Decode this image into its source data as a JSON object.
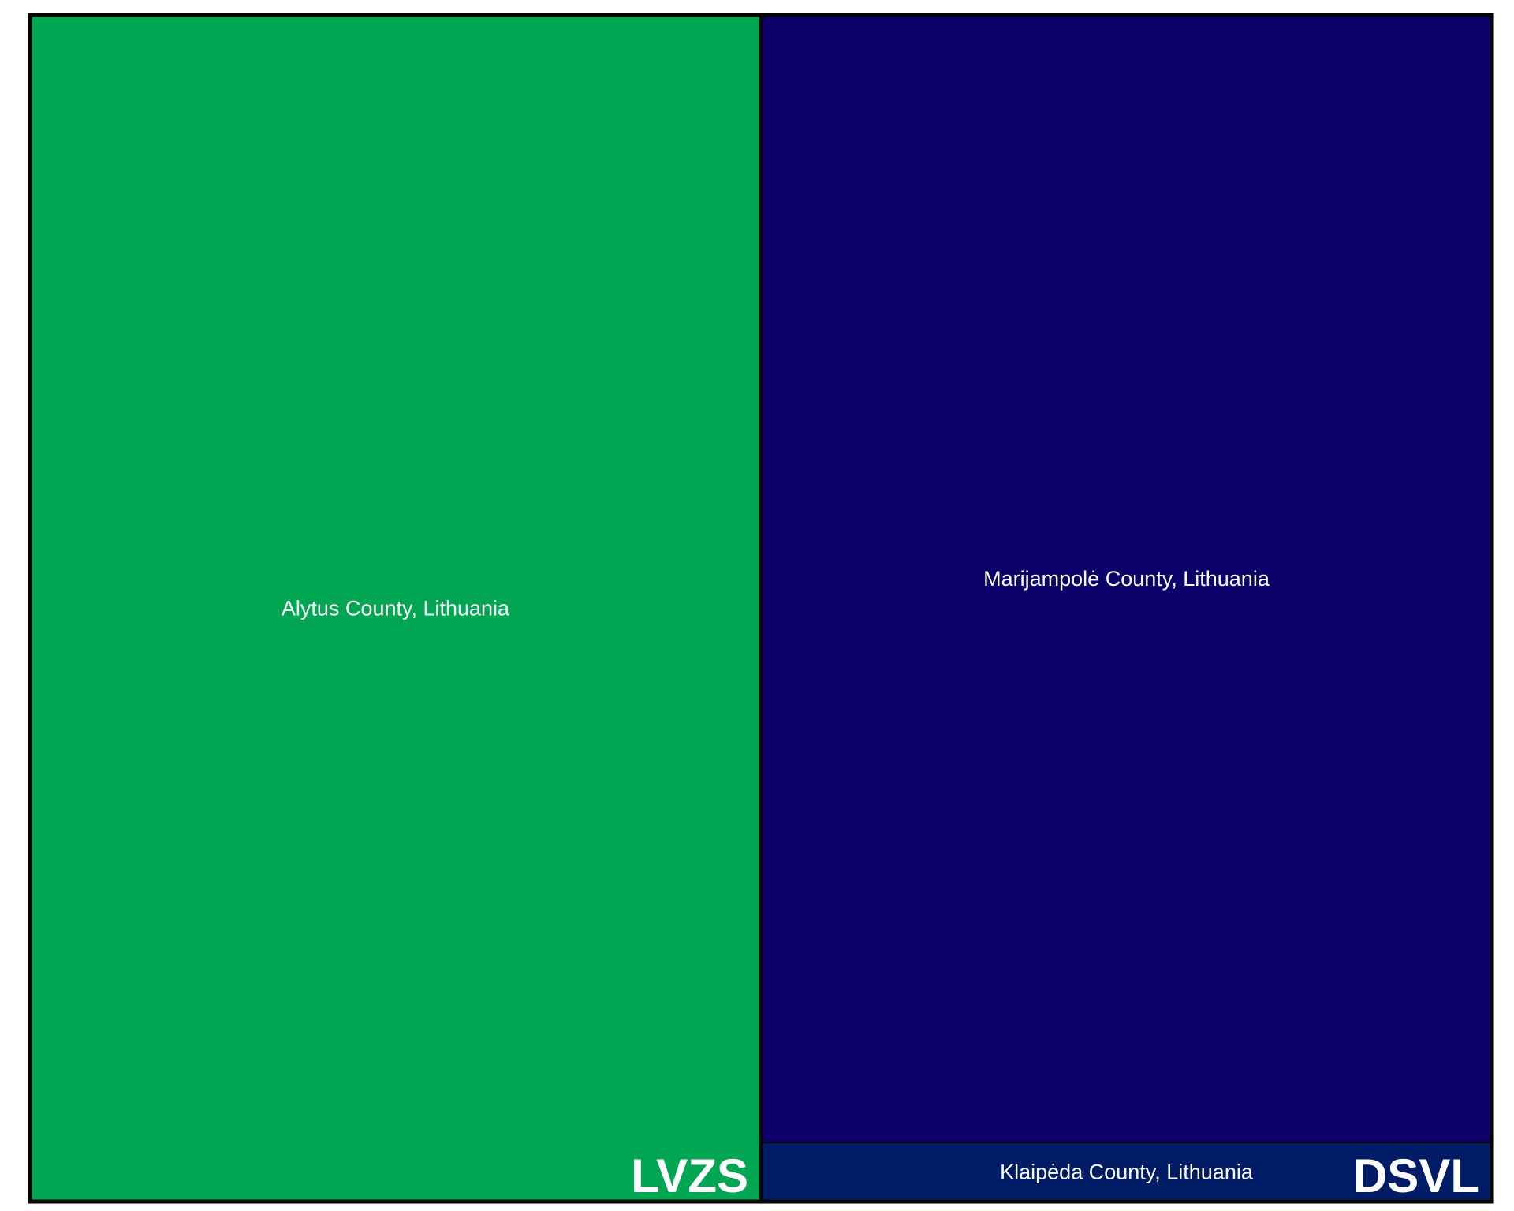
{
  "chart_data": {
    "type": "treemap",
    "groups": [
      {
        "name": "LVZS",
        "color": "#00a651",
        "children": [
          {
            "name": "Alytus County, Lithuania",
            "value": 1,
            "color": "#00a651"
          }
        ]
      },
      {
        "name": "DSVL",
        "color": "#0c006a",
        "children": [
          {
            "name": "Marijampolė County, Lithuania",
            "value": 0.95,
            "color": "#0c006a"
          },
          {
            "name": "Klaipėda County, Lithuania",
            "value": 0.05,
            "color": "#001c66"
          }
        ]
      }
    ]
  }
}
